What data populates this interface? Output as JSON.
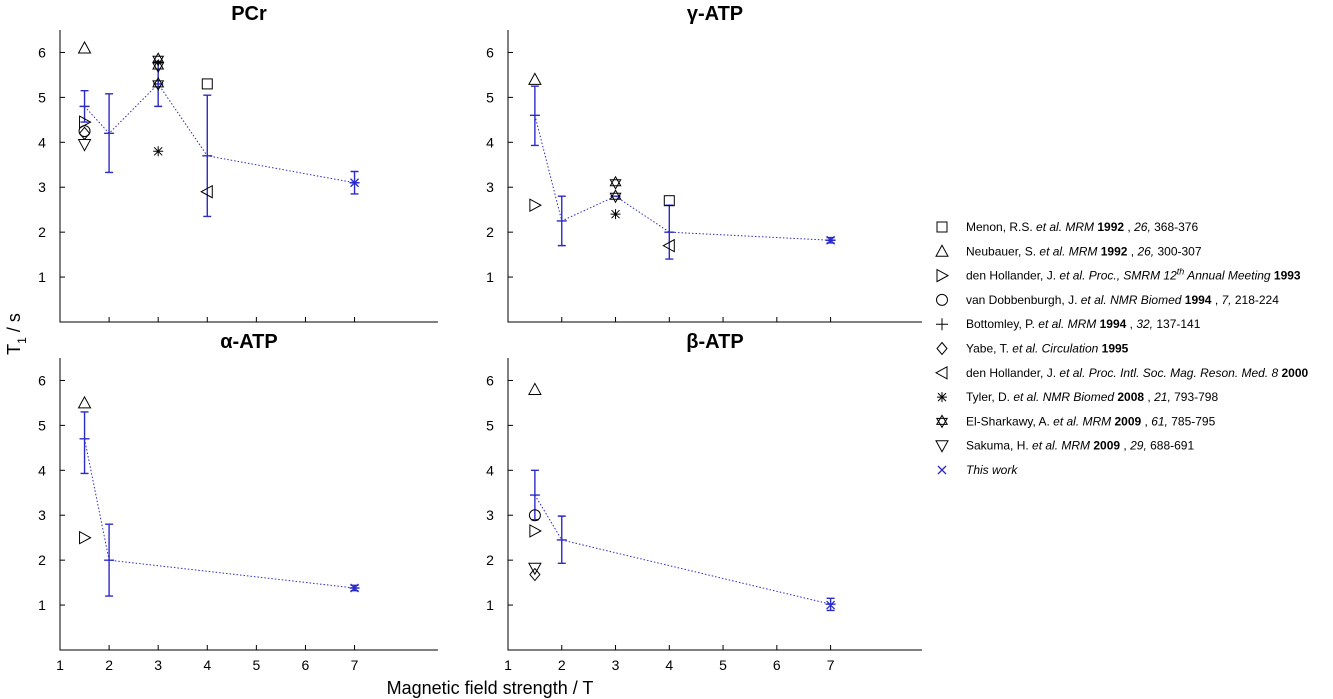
{
  "figure": {
    "ylabel": "T",
    "ylabel_sub": "1",
    "ylabel_suffix": " / s",
    "xlabel": "Magnetic field strength / T",
    "colors": {
      "mean": "#2b2bc8",
      "markers": "#000000"
    }
  },
  "legend": [
    {
      "marker": "square",
      "parts": [
        {
          "t": "Menon, R.S. "
        },
        {
          "t": "et al. MRM",
          "i": true
        },
        {
          "t": "  1992",
          "b": true
        },
        {
          "t": " , "
        },
        {
          "t": "26,",
          "i": true
        },
        {
          "t": "  368-376"
        }
      ]
    },
    {
      "marker": "triangle-up",
      "parts": [
        {
          "t": "Neubauer, S. "
        },
        {
          "t": "et al. MRM",
          "i": true
        },
        {
          "t": "  1992",
          "b": true
        },
        {
          "t": " , "
        },
        {
          "t": "26,",
          "i": true
        },
        {
          "t": "  300-307"
        }
      ]
    },
    {
      "marker": "triangle-right",
      "parts": [
        {
          "t": "den Hollander, J. "
        },
        {
          "t": "et al. Proc., SMRM 12",
          "i": true
        },
        {
          "t": "th",
          "i": true,
          "sup": true
        },
        {
          "t": " Annual Meeting",
          "i": true
        },
        {
          "t": "  1993",
          "b": true
        }
      ]
    },
    {
      "marker": "circle",
      "parts": [
        {
          "t": "van Dobbenburgh, J. "
        },
        {
          "t": "et al. NMR Biomed",
          "i": true
        },
        {
          "t": "  1994",
          "b": true
        },
        {
          "t": " , "
        },
        {
          "t": "7,",
          "i": true
        },
        {
          "t": "  218-224"
        }
      ]
    },
    {
      "marker": "plus",
      "parts": [
        {
          "t": "Bottomley, P. "
        },
        {
          "t": "et al. MRM",
          "i": true
        },
        {
          "t": "  1994",
          "b": true
        },
        {
          "t": " , "
        },
        {
          "t": "32,",
          "i": true
        },
        {
          "t": "  137-141"
        }
      ]
    },
    {
      "marker": "diamond",
      "parts": [
        {
          "t": "Yabe, T. "
        },
        {
          "t": "et al. Circulation",
          "i": true
        },
        {
          "t": "  1995",
          "b": true
        }
      ]
    },
    {
      "marker": "triangle-left",
      "parts": [
        {
          "t": "den Hollander, J. "
        },
        {
          "t": "et al. Proc. Intl. Soc. Mag. Reson. Med. 8",
          "i": true
        },
        {
          "t": "  2000",
          "b": true
        }
      ]
    },
    {
      "marker": "asterisk",
      "parts": [
        {
          "t": "Tyler, D. "
        },
        {
          "t": "et al. NMR Biomed",
          "i": true
        },
        {
          "t": "  2008",
          "b": true
        },
        {
          "t": " , "
        },
        {
          "t": "21,",
          "i": true
        },
        {
          "t": "  793-798"
        }
      ]
    },
    {
      "marker": "hexagram",
      "parts": [
        {
          "t": "El-Sharkawy, A. "
        },
        {
          "t": "et al. MRM",
          "i": true
        },
        {
          "t": "  2009",
          "b": true
        },
        {
          "t": " , "
        },
        {
          "t": "61,",
          "i": true
        },
        {
          "t": "  785-795"
        }
      ]
    },
    {
      "marker": "triangle-down",
      "parts": [
        {
          "t": "Sakuma, H. "
        },
        {
          "t": "et al. MRM",
          "i": true
        },
        {
          "t": "  2009",
          "b": true
        },
        {
          "t": " , "
        },
        {
          "t": "29,",
          "i": true
        },
        {
          "t": "  688-691"
        }
      ]
    },
    {
      "marker": "x",
      "parts": [
        {
          "t": "  This work",
          "i": true
        }
      ]
    }
  ],
  "chart_data": [
    {
      "type": "scatter",
      "title": "PCr",
      "xticks": [
        1,
        2,
        3,
        4,
        5,
        6,
        7
      ],
      "yticks": [
        1,
        2,
        3,
        4,
        5,
        6
      ],
      "xlim": [
        1,
        8.7
      ],
      "ylim": [
        0,
        6.5
      ],
      "points": [
        {
          "x": 1.5,
          "y": 6.1,
          "marker": "triangle-up"
        },
        {
          "x": 1.5,
          "y": 4.45,
          "marker": "triangle-right"
        },
        {
          "x": 1.5,
          "y": 4.25,
          "marker": "circle"
        },
        {
          "x": 1.5,
          "y": 4.2,
          "marker": "diamond"
        },
        {
          "x": 1.5,
          "y": 3.95,
          "marker": "triangle-down"
        },
        {
          "x": 3,
          "y": 3.8,
          "marker": "asterisk"
        },
        {
          "x": 3,
          "y": 5.85,
          "marker": "hexagram"
        },
        {
          "x": 3,
          "y": 5.7,
          "marker": "hexagram"
        },
        {
          "x": 3,
          "y": 5.3,
          "marker": "hexagram"
        },
        {
          "x": 4,
          "y": 5.3,
          "marker": "square"
        },
        {
          "x": 4,
          "y": 2.9,
          "marker": "triangle-left"
        },
        {
          "x": 7,
          "y": 3.1,
          "marker": "x"
        }
      ],
      "means": [
        {
          "x": 1.5,
          "y": 4.8,
          "low": 4.45,
          "high": 5.15
        },
        {
          "x": 2,
          "y": 4.2,
          "low": 3.33,
          "high": 5.08
        },
        {
          "x": 3,
          "y": 5.3,
          "low": 4.8,
          "high": 5.8
        },
        {
          "x": 4,
          "y": 3.7,
          "low": 2.35,
          "high": 5.05
        },
        {
          "x": 7,
          "y": 3.1,
          "low": 2.85,
          "high": 3.35
        }
      ]
    },
    {
      "type": "scatter",
      "title": "γ-ATP",
      "xticks": [
        1,
        2,
        3,
        4,
        5,
        6,
        7
      ],
      "yticks": [
        1,
        2,
        3,
        4,
        5,
        6
      ],
      "xlim": [
        1,
        8.7
      ],
      "ylim": [
        0,
        6.5
      ],
      "points": [
        {
          "x": 1.5,
          "y": 5.4,
          "marker": "triangle-up"
        },
        {
          "x": 1.5,
          "y": 2.6,
          "marker": "triangle-right"
        },
        {
          "x": 3,
          "y": 2.4,
          "marker": "asterisk"
        },
        {
          "x": 3,
          "y": 3.1,
          "marker": "hexagram"
        },
        {
          "x": 3,
          "y": 2.8,
          "marker": "hexagram"
        },
        {
          "x": 4,
          "y": 2.7,
          "marker": "square"
        },
        {
          "x": 4,
          "y": 1.7,
          "marker": "triangle-left"
        },
        {
          "x": 7,
          "y": 1.82,
          "marker": "x"
        }
      ],
      "means": [
        {
          "x": 1.5,
          "y": 4.6,
          "low": 3.93,
          "high": 5.25
        },
        {
          "x": 2,
          "y": 2.25,
          "low": 1.7,
          "high": 2.8
        },
        {
          "x": 3,
          "y": 2.8,
          "low": 2.8,
          "high": 2.8
        },
        {
          "x": 4,
          "y": 2.0,
          "low": 1.4,
          "high": 2.6
        },
        {
          "x": 7,
          "y": 1.82,
          "low": 1.76,
          "high": 1.88
        }
      ]
    },
    {
      "type": "scatter",
      "title": "α-ATP",
      "xticks": [
        1,
        2,
        3,
        4,
        5,
        6,
        7
      ],
      "yticks": [
        1,
        2,
        3,
        4,
        5,
        6
      ],
      "xlim": [
        1,
        8.7
      ],
      "ylim": [
        0,
        6.5
      ],
      "points": [
        {
          "x": 1.5,
          "y": 5.5,
          "marker": "triangle-up"
        },
        {
          "x": 1.5,
          "y": 2.5,
          "marker": "triangle-right"
        },
        {
          "x": 7,
          "y": 1.38,
          "marker": "x"
        }
      ],
      "means": [
        {
          "x": 1.5,
          "y": 4.7,
          "low": 3.93,
          "high": 5.3
        },
        {
          "x": 2,
          "y": 2.0,
          "low": 1.2,
          "high": 2.8
        },
        {
          "x": 7,
          "y": 1.38,
          "low": 1.32,
          "high": 1.44
        }
      ]
    },
    {
      "type": "scatter",
      "title": "β-ATP",
      "xticks": [
        1,
        2,
        3,
        4,
        5,
        6,
        7
      ],
      "yticks": [
        1,
        2,
        3,
        4,
        5,
        6
      ],
      "xlim": [
        1,
        8.7
      ],
      "ylim": [
        0,
        6.5
      ],
      "points": [
        {
          "x": 1.5,
          "y": 5.8,
          "marker": "triangle-up"
        },
        {
          "x": 1.5,
          "y": 3.0,
          "marker": "circle"
        },
        {
          "x": 1.5,
          "y": 2.65,
          "marker": "triangle-right"
        },
        {
          "x": 1.5,
          "y": 1.82,
          "marker": "triangle-down"
        },
        {
          "x": 1.5,
          "y": 1.68,
          "marker": "diamond"
        },
        {
          "x": 7,
          "y": 1.0,
          "marker": "x"
        }
      ],
      "means": [
        {
          "x": 1.5,
          "y": 3.45,
          "low": 2.9,
          "high": 4.0
        },
        {
          "x": 2,
          "y": 2.45,
          "low": 1.93,
          "high": 2.98
        },
        {
          "x": 7,
          "y": 1.02,
          "low": 0.88,
          "high": 1.15
        }
      ]
    }
  ]
}
